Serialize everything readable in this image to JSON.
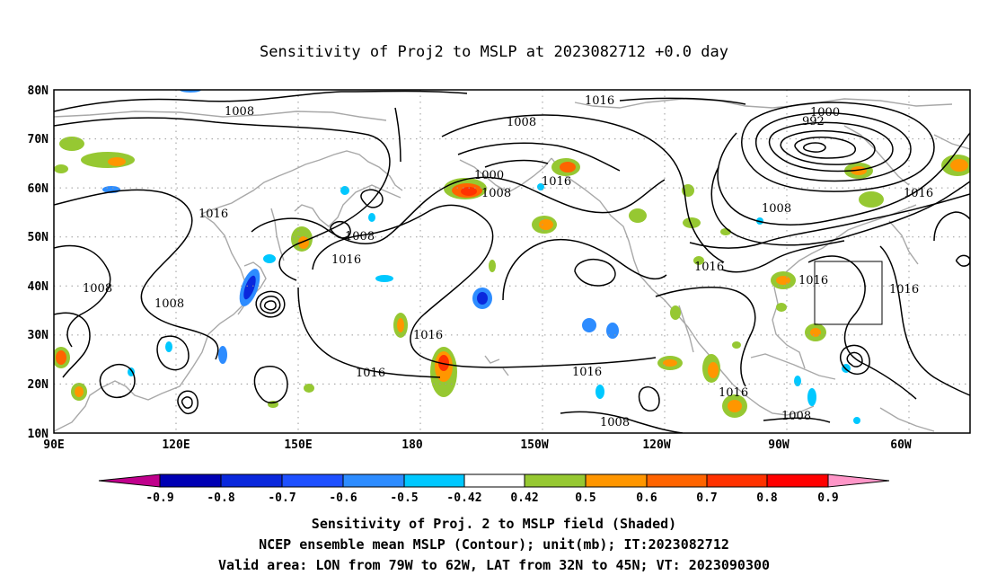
{
  "title": "Sensitivity of Proj2 to MSLP at 2023082712 +0.0 day",
  "axes": {
    "lat_labels": [
      "80N",
      "70N",
      "60N",
      "50N",
      "40N",
      "30N",
      "20N",
      "10N"
    ],
    "lon_labels": [
      "90E",
      "120E",
      "150E",
      "180",
      "150W",
      "120W",
      "90W",
      "60W"
    ]
  },
  "contour_labels": [
    "1008",
    "1016",
    "1008",
    "1000",
    "992",
    "1000",
    "1008",
    "1016",
    "1016",
    "1008",
    "1016",
    "1008",
    "1016",
    "1008",
    "1016",
    "1008",
    "1016",
    "1016",
    "1016",
    "1016",
    "1016",
    "1016",
    "1008",
    "1008",
    "1016"
  ],
  "colorbar": {
    "ticks": [
      "-0.9",
      "-0.8",
      "-0.7",
      "-0.6",
      "-0.5",
      "-0.42",
      "0.42",
      "0.5",
      "0.6",
      "0.7",
      "0.8",
      "0.9"
    ],
    "colors": [
      "#c0008c",
      "#0000b4",
      "#0a28dc",
      "#1e50ff",
      "#2d8cff",
      "#00c8ff",
      "#ffffff",
      "#96c832",
      "#ff9600",
      "#ff6400",
      "#ff3200",
      "#ff0000",
      "#ff96c8"
    ]
  },
  "captions": [
    "Sensitivity of Proj. 2 to MSLP field (Shaded)",
    "NCEP ensemble mean MSLP (Contour); unit(mb); IT:2023082712",
    "Valid area: LON from 79W to 62W, LAT from 32N to 45N; VT: 2023090300"
  ]
}
